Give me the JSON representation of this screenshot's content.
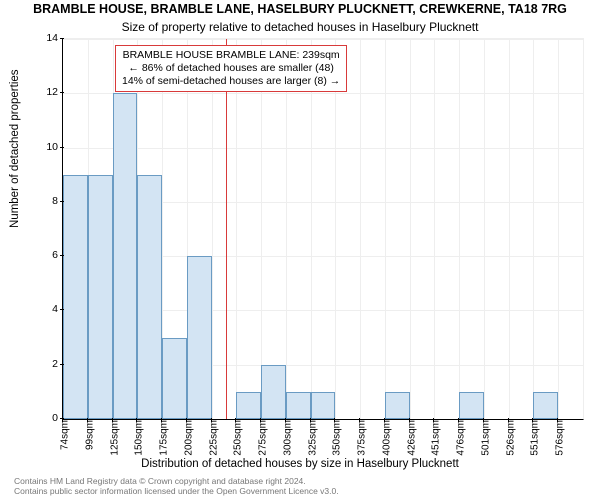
{
  "chart": {
    "type": "histogram",
    "title_main": "BRAMBLE HOUSE, BRAMBLE LANE, HASELBURY PLUCKNETT, CREWKERNE, TA18 7RG",
    "title_sub": "Size of property relative to detached houses in Haselbury Plucknett",
    "ylabel": "Number of detached properties",
    "xlabel": "Distribution of detached houses by size in Haselbury Plucknett",
    "ylim": [
      0,
      14
    ],
    "ytick_step": 2,
    "yticks": [
      0,
      2,
      4,
      6,
      8,
      10,
      12,
      14
    ],
    "x_categories": [
      "74sqm",
      "99sqm",
      "125sqm",
      "150sqm",
      "175sqm",
      "200sqm",
      "225sqm",
      "250sqm",
      "275sqm",
      "300sqm",
      "325sqm",
      "350sqm",
      "375sqm",
      "400sqm",
      "426sqm",
      "451sqm",
      "476sqm",
      "501sqm",
      "526sqm",
      "551sqm",
      "576sqm"
    ],
    "bars": [
      9,
      9,
      12,
      9,
      3,
      6,
      0,
      1,
      2,
      1,
      1,
      0,
      0,
      1,
      0,
      0,
      1,
      0,
      0,
      1,
      0
    ],
    "bar_fill": "#d3e4f3",
    "bar_edge": "#6a9bc3",
    "grid_color": "#eeeeee",
    "background": "#ffffff",
    "marker_line_color": "#d83a3a",
    "marker_x_index": 6.6,
    "annotation": {
      "line1": "BRAMBLE HOUSE BRAMBLE LANE: 239sqm",
      "line2": "← 86% of detached houses are smaller (48)",
      "line3": "14% of semi-detached houses are larger (8) →",
      "border_color": "#d83a3a"
    },
    "title_fontsize": 12.5,
    "subtitle_fontsize": 12,
    "label_fontsize": 11.5,
    "tick_fontsize": 10.5,
    "annotation_fontsize": 10.5
  },
  "footer": {
    "line1": "Contains HM Land Registry data © Crown copyright and database right 2024.",
    "line2": "Contains public sector information licensed under the Open Government Licence v3.0."
  }
}
